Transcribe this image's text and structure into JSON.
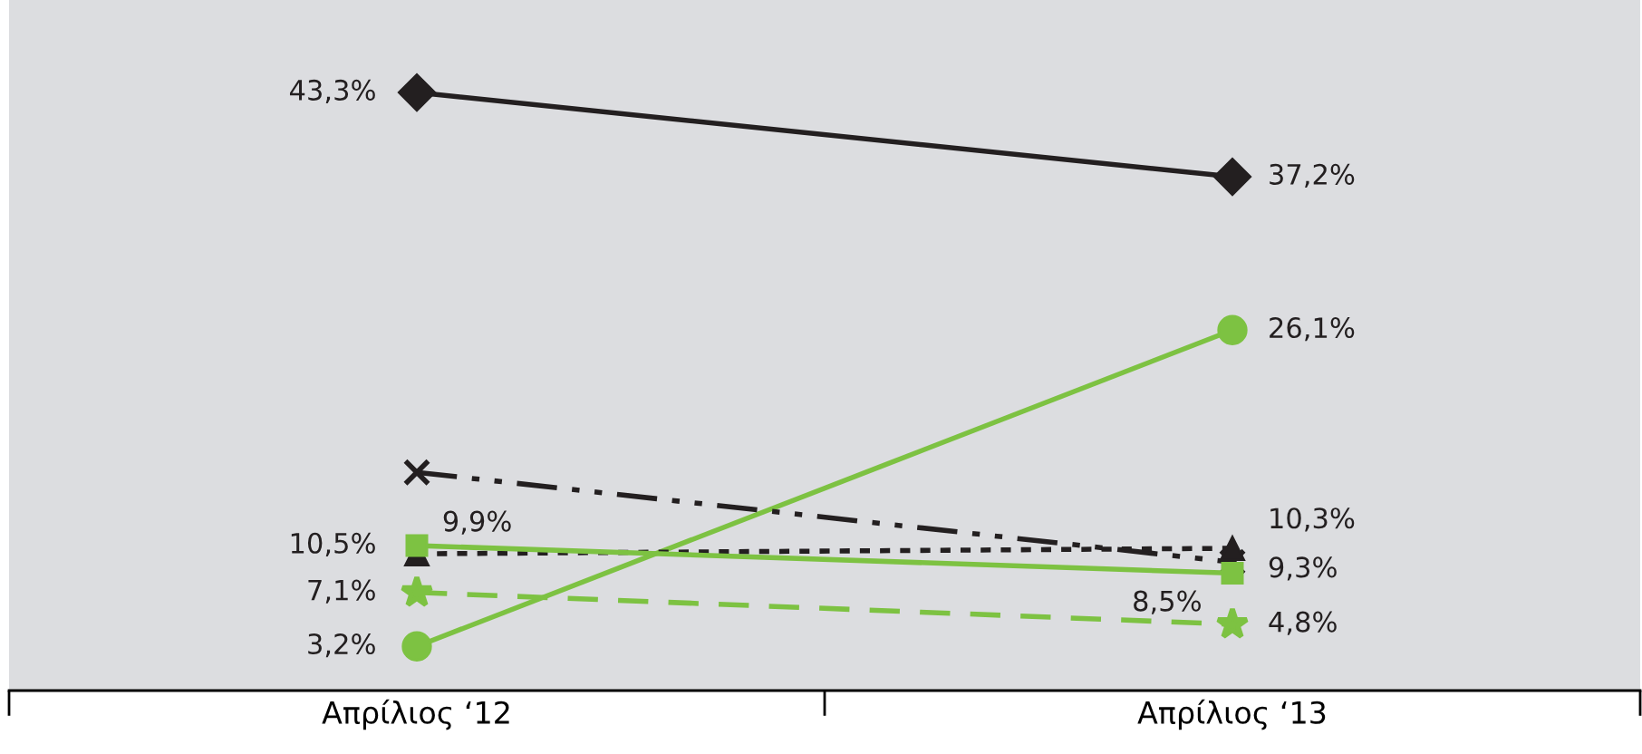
{
  "chart_data": {
    "type": "line",
    "categories": [
      "Απρίλιος ‘12",
      "Απρίλιος ‘13"
    ],
    "ylim": [
      0,
      50
    ],
    "tick_labels": "x",
    "series": [
      {
        "color": "#231f20",
        "values": [
          43.3,
          37.2
        ],
        "marker": "diamond",
        "line_style": "solid",
        "value_labels": [
          "43,3%",
          "37,2%"
        ]
      },
      {
        "color": "#7dc242",
        "values": [
          3.2,
          26.1
        ],
        "marker": "circle",
        "line_style": "solid",
        "value_labels": [
          "3,2%",
          "26,1%"
        ]
      },
      {
        "color": "#231f20",
        "values": [
          15.8,
          9.3
        ],
        "marker": "cross",
        "line_style": "dashdot",
        "value_labels": [
          null,
          "9,3%"
        ]
      },
      {
        "color": "#231f20",
        "values": [
          9.9,
          10.3
        ],
        "marker": "triangle",
        "line_style": "dotted",
        "value_labels": [
          "9,9%",
          "10,3%"
        ]
      },
      {
        "color": "#7dc242",
        "values": [
          10.5,
          8.5
        ],
        "marker": "square",
        "line_style": "solid",
        "value_labels": [
          "10,5%",
          "8,5%"
        ]
      },
      {
        "color": "#7dc242",
        "values": [
          7.1,
          4.8
        ],
        "marker": "star",
        "line_style": "dashed",
        "value_labels": [
          "7,1%",
          "4,8%"
        ]
      }
    ]
  }
}
